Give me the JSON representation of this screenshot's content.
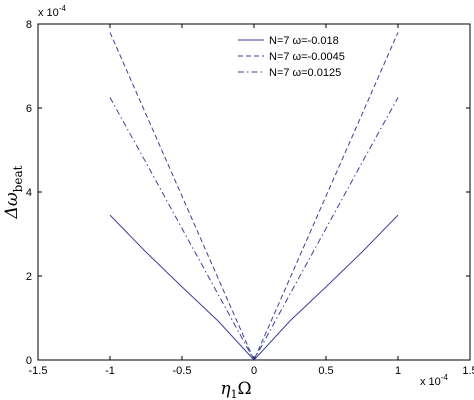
{
  "chart_data": {
    "type": "line",
    "x": [
      -1.0,
      -0.75,
      -0.5,
      -0.25,
      0.0,
      0.25,
      0.5,
      0.75,
      1.0
    ],
    "series": [
      {
        "name": "N=7 ω=-0.018",
        "values": [
          3.45,
          2.57,
          1.74,
          0.93,
          0.0,
          0.93,
          1.74,
          2.57,
          3.45
        ],
        "color": "#3f3f9e",
        "dash": "solid"
      },
      {
        "name": "N=7 ω=-0.0045",
        "values": [
          7.8,
          5.85,
          3.9,
          1.95,
          0.0,
          1.95,
          3.9,
          5.85,
          7.8
        ],
        "color": "#3f3f9e",
        "dash": "dashed"
      },
      {
        "name": "N=7 ω=0.0125",
        "values": [
          6.25,
          4.7,
          3.13,
          1.57,
          0.0,
          1.57,
          3.13,
          4.7,
          6.25
        ],
        "color": "#3f3f9e",
        "dash": "dashdot"
      }
    ],
    "xlim": [
      -1.5,
      1.5
    ],
    "ylim": [
      0,
      8
    ],
    "xticks": [
      -1.5,
      -1,
      -0.5,
      0,
      0.5,
      1,
      1.5
    ],
    "xtick_labels": [
      "-1.5",
      "-1",
      "-0.5",
      "0",
      "0.5",
      "1",
      "1.5"
    ],
    "yticks": [
      0,
      2,
      4,
      6,
      8
    ],
    "ytick_labels": [
      "0",
      "2",
      "4",
      "6",
      "8"
    ],
    "x_multiplier": "x 10",
    "x_multiplier_exp": "-4",
    "y_multiplier": "x 10",
    "y_multiplier_exp": "-4",
    "xlabel_main": "η",
    "xlabel_sub": "1",
    "xlabel_tail": "Ω",
    "ylabel_main": "Δω",
    "ylabel_sub": "beat",
    "grid": false,
    "legend_position": "top-right"
  }
}
